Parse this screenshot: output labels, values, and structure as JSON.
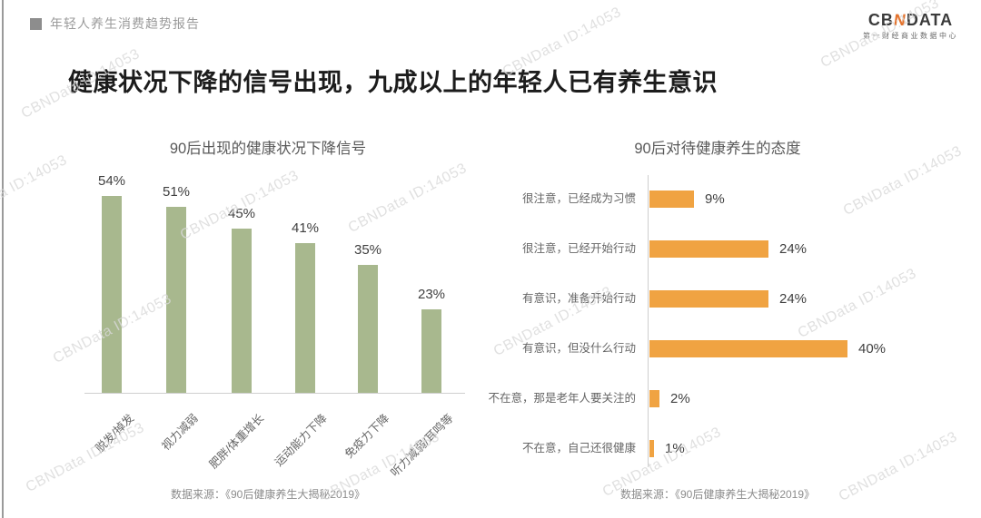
{
  "header": {
    "report_label": "年轻人养生消费趋势报告"
  },
  "logo": {
    "text_parts": [
      "CB",
      "N",
      "DATA"
    ],
    "subtitle": "第一财经商业数据中心",
    "accent_color": "#e4742e"
  },
  "title": "健康状况下降的信号出现，九成以上的年轻人已有养生意识",
  "watermark": {
    "text": "CBNData ID:14053"
  },
  "colors": {
    "green_bar": "#a8b88e",
    "orange_bar": "#f0a342",
    "axis_line": "#cfcfcf"
  },
  "chart_data": [
    {
      "type": "bar",
      "orientation": "vertical",
      "title": "90后出现的健康状况下降信号",
      "categories": [
        "脱发/掉发",
        "视力减弱",
        "肥胖/体重增长",
        "运动能力下降",
        "免疫力下降",
        "听力减弱/耳鸣等"
      ],
      "values": [
        54,
        51,
        45,
        41,
        35,
        23
      ],
      "unit": "%",
      "bar_color": "#a8b88e",
      "value_labels": "above bars",
      "ylim": [
        0,
        60
      ],
      "grid": false,
      "source": "数据来源：《90后健康养生大揭秘2019》"
    },
    {
      "type": "bar",
      "orientation": "horizontal",
      "title": "90后对待健康养生的态度",
      "categories": [
        "很注意，已经成为习惯",
        "很注意，已经开始行动",
        "有意识，准备开始行动",
        "有意识，但没什么行动",
        "不在意，那是老年人要关注的",
        "不在意，自己还很健康"
      ],
      "values": [
        9,
        24,
        24,
        40,
        2,
        1
      ],
      "unit": "%",
      "bar_color": "#f0a342",
      "value_labels": "right of bars",
      "xlim": [
        0,
        45
      ],
      "grid": false,
      "source": "数据来源：《90后健康养生大揭秘2019》"
    }
  ]
}
